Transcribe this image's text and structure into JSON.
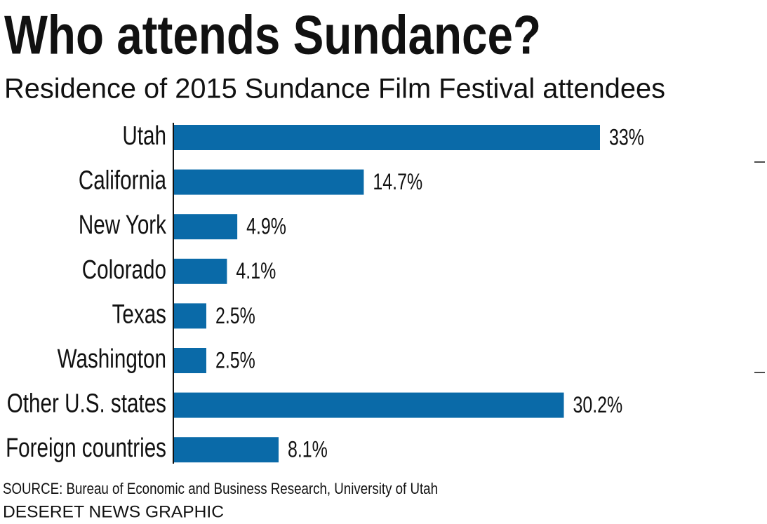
{
  "chart_data": {
    "type": "bar",
    "orientation": "horizontal",
    "title": "Who attends Sundance?",
    "subtitle": "Residence of 2015 Sundance Film Festival attendees",
    "categories": [
      "Utah",
      "California",
      "New York",
      "Colorado",
      "Texas",
      "Washington",
      "Other U.S. states",
      "Foreign countries"
    ],
    "values": [
      33,
      14.7,
      4.9,
      4.1,
      2.5,
      2.5,
      30.2,
      8.1
    ],
    "value_labels": [
      "33%",
      "14.7%",
      "4.9%",
      "4.1%",
      "2.5%",
      "2.5%",
      "30.2%",
      "8.1%"
    ],
    "color": "#0a6aa8",
    "source": "SOURCE: Bureau of Economic and Business Research, University of Utah",
    "credit": "DESERET NEWS GRAPHIC"
  }
}
